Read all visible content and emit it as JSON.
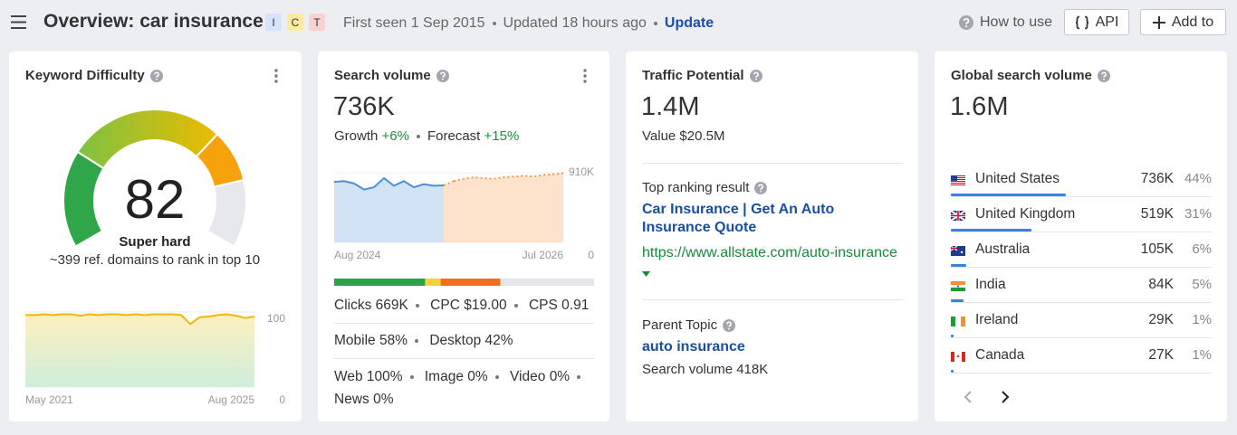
{
  "header": {
    "title": "Overview: car insurance",
    "intents": [
      "I",
      "C",
      "T"
    ],
    "first_seen": "First seen 1 Sep 2015",
    "updated": "Updated 18 hours ago",
    "update": "Update",
    "how_to_use": "How to use",
    "api": "API",
    "add_to": "Add to"
  },
  "keyword_difficulty": {
    "title": "Keyword Difficulty",
    "value": 82,
    "rating": "Super hard",
    "note": "~399 ref. domains to rank in top 10",
    "trend": {
      "type": "area",
      "x_start": "May 2021",
      "x_end": "Aug 2025",
      "ylim": [
        0,
        100
      ],
      "yticks": [
        0,
        100
      ],
      "color": "#f2b705",
      "values": [
        96,
        96,
        97,
        96,
        97,
        97,
        95,
        97,
        96,
        97,
        97,
        96,
        97,
        96,
        97,
        97,
        97,
        96,
        84,
        93,
        94,
        96,
        97,
        95,
        92,
        94
      ]
    }
  },
  "search_volume": {
    "title": "Search volume",
    "value": "736K",
    "growth_label": "Growth",
    "growth": "+6%",
    "forecast_label": "Forecast",
    "forecast": "+15%",
    "trend": {
      "type": "area",
      "x_start": "Aug 2024",
      "x_end": "Jul 2026",
      "ylim": [
        0,
        910000
      ],
      "yticks": [
        0,
        {
          "value": 910000,
          "label": "910K"
        }
      ],
      "history": {
        "color": "#4a8fdb",
        "values": [
          790000,
          800000,
          770000,
          690000,
          720000,
          840000,
          740000,
          800000,
          720000,
          760000,
          740000,
          745000
        ]
      },
      "forecast": {
        "color": "#f39a3c",
        "values": [
          800000,
          830000,
          850000,
          840000,
          830000,
          850000,
          860000,
          870000,
          860000,
          880000,
          890000,
          905000
        ]
      }
    },
    "click_split": {
      "values": [
        35,
        6,
        23,
        36
      ],
      "colors": [
        "#27a448",
        "#f6cf3a",
        "#f26f22",
        "#e4e6ea"
      ]
    },
    "metrics": [
      [
        {
          "label": "Clicks",
          "value": "669K"
        },
        {
          "label": "CPC",
          "value": "$19.00"
        },
        {
          "label": "CPS",
          "value": "0.91"
        }
      ],
      [
        {
          "label": "Mobile",
          "value": "58%"
        },
        {
          "label": "Desktop",
          "value": "42%"
        }
      ],
      [
        {
          "label": "Web",
          "value": "100%"
        },
        {
          "label": "Image",
          "value": "0%"
        },
        {
          "label": "Video",
          "value": "0%"
        },
        {
          "label": "News",
          "value": "0%"
        }
      ]
    ]
  },
  "traffic_potential": {
    "title": "Traffic Potential",
    "value": "1.4M",
    "traffic_value": "Value $20.5M",
    "top_result_label": "Top ranking result",
    "top_result_title": "Car Insurance | Get An Auto Insurance Quote",
    "top_result_url": "https://www.allstate.com/auto-insurance",
    "parent_topic_label": "Parent Topic",
    "parent_topic": "auto insurance",
    "parent_topic_volume": "Search volume 418K"
  },
  "global_volume": {
    "title": "Global search volume",
    "value": "1.6M",
    "bar_color": "#3b82e0",
    "countries": [
      {
        "name": "United States",
        "volume": "736K",
        "share": 44,
        "share_label": "44%"
      },
      {
        "name": "United Kingdom",
        "volume": "519K",
        "share": 31,
        "share_label": "31%"
      },
      {
        "name": "Australia",
        "volume": "105K",
        "share": 6,
        "share_label": "6%"
      },
      {
        "name": "India",
        "volume": "84K",
        "share": 5,
        "share_label": "5%"
      },
      {
        "name": "Ireland",
        "volume": "29K",
        "share": 1,
        "share_label": "1%"
      },
      {
        "name": "Canada",
        "volume": "27K",
        "share": 1,
        "share_label": "1%"
      }
    ]
  }
}
